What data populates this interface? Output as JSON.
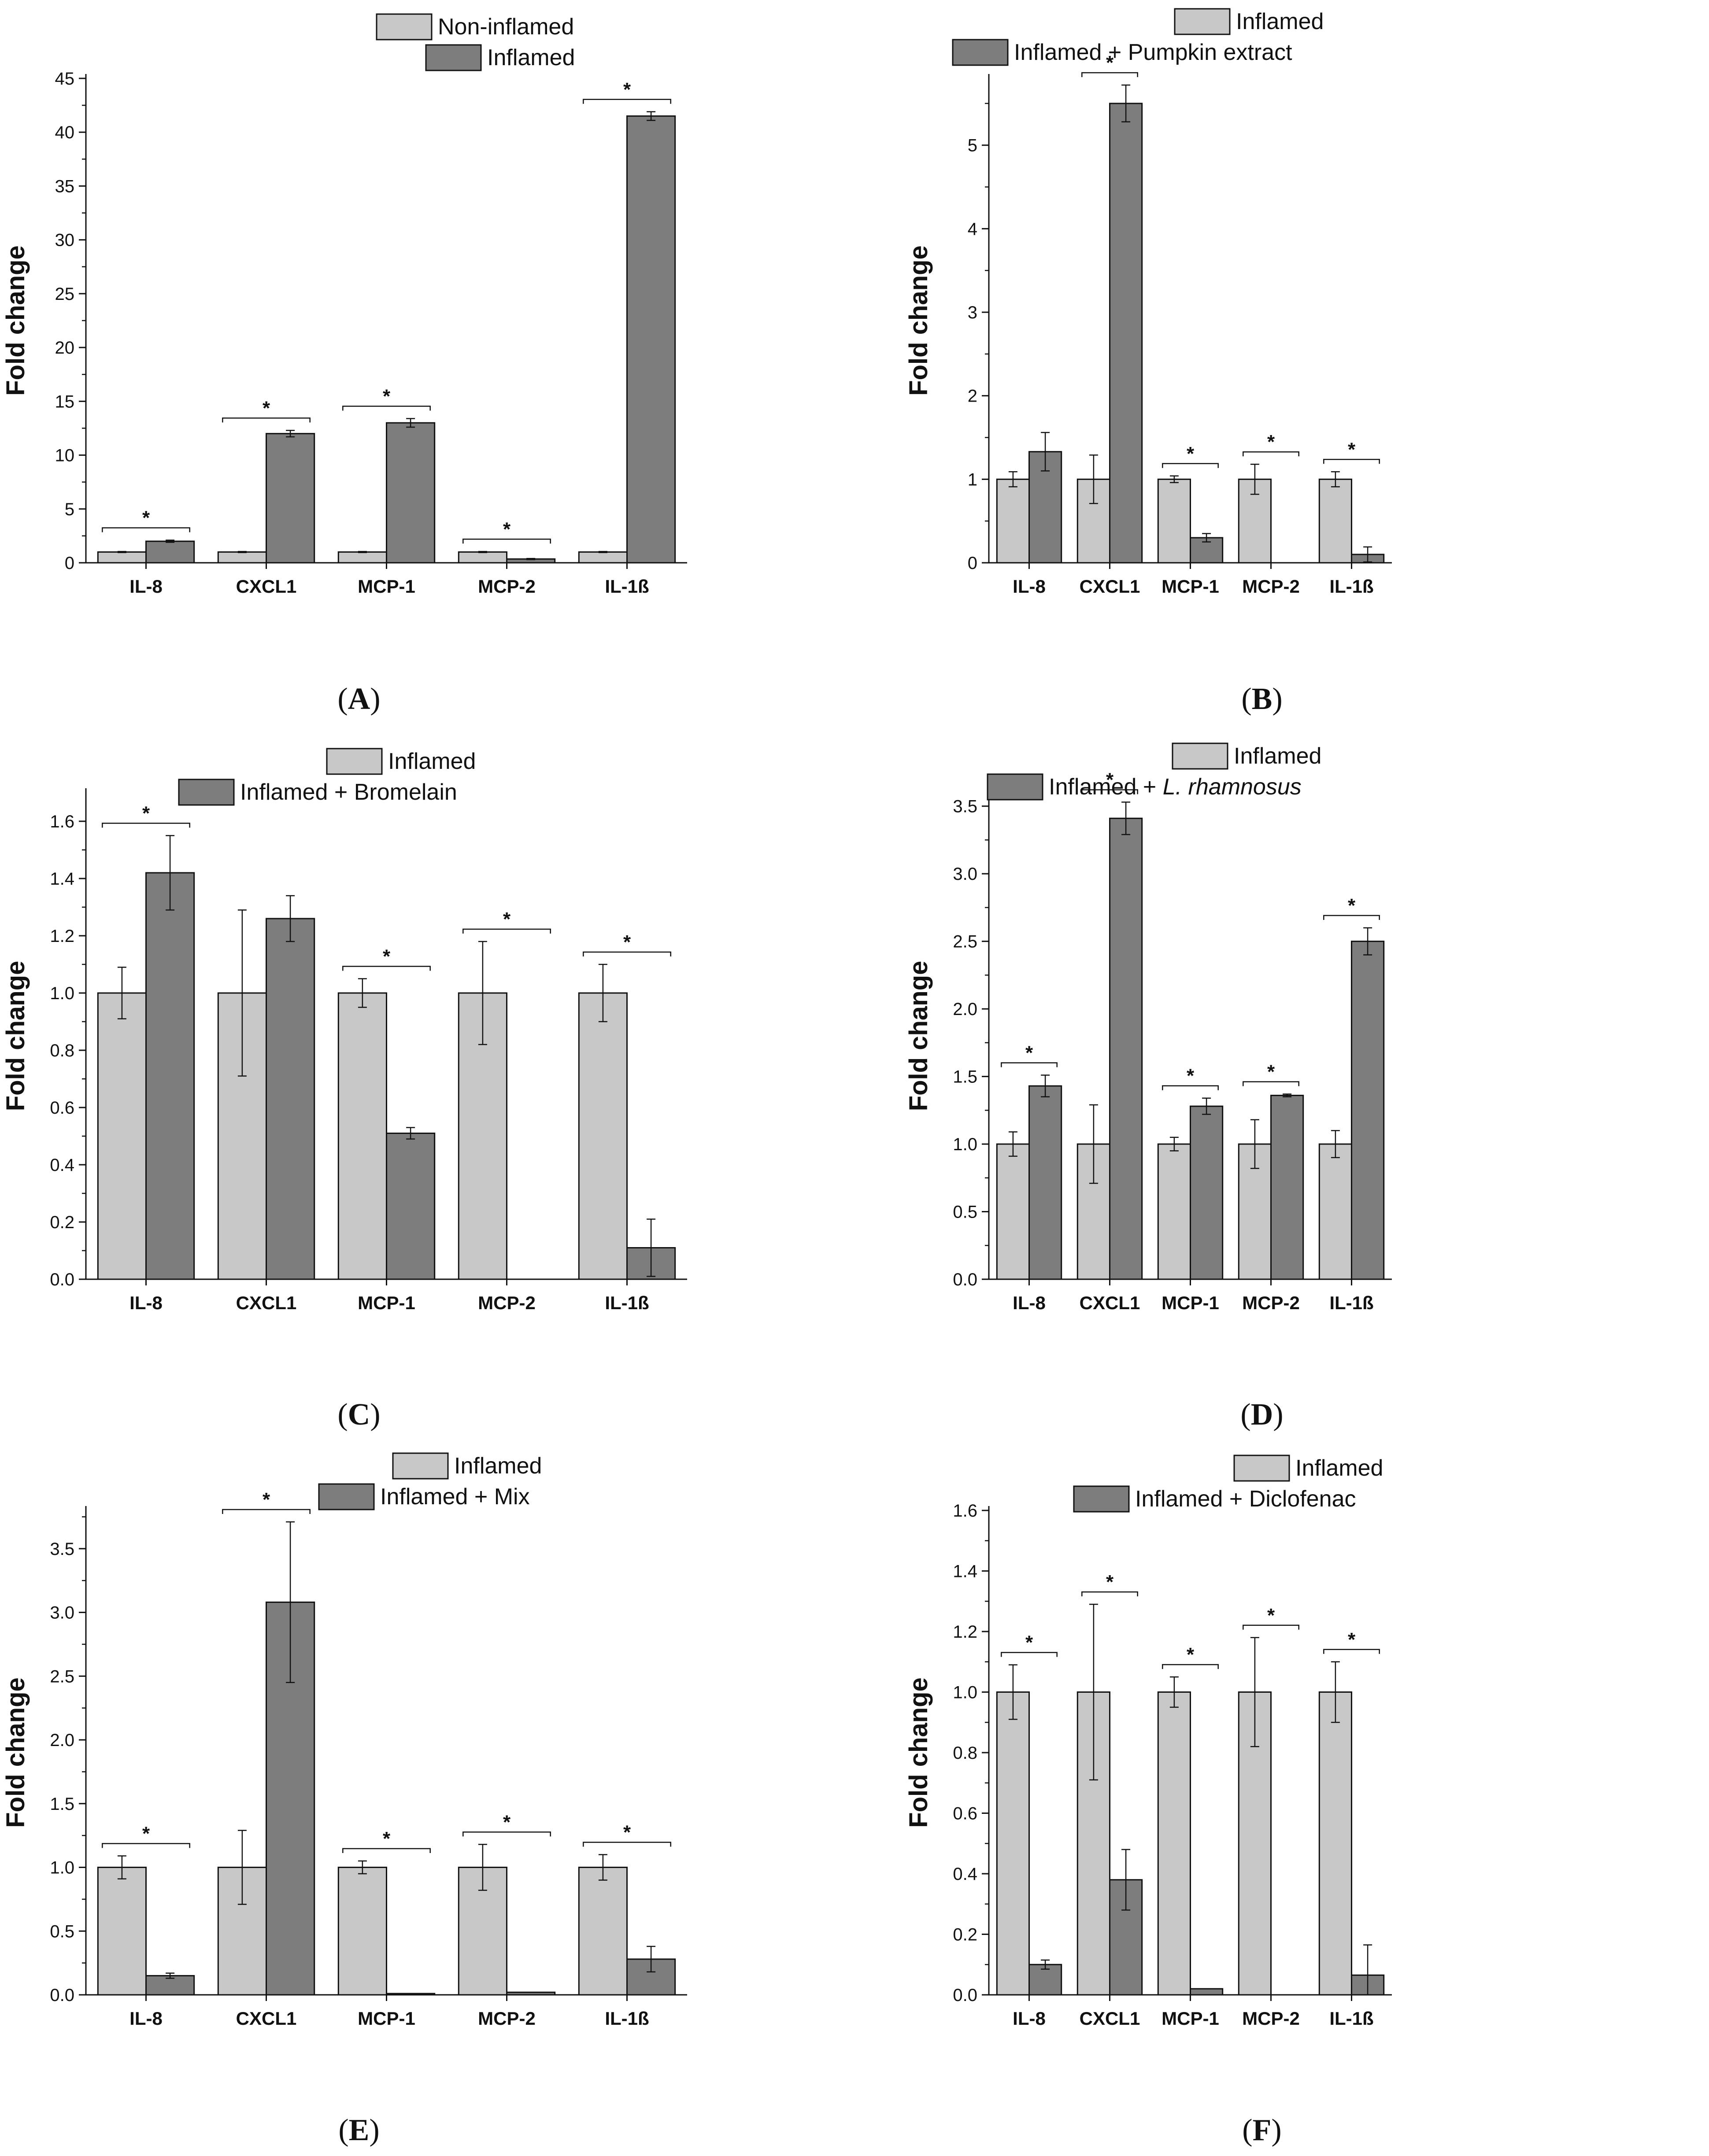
{
  "colors": {
    "light": "#c8c8c8",
    "dark": "#7d7d7d",
    "axis": "#111111"
  },
  "chart_data": [
    {
      "type": "bar",
      "panel": "A",
      "caption_letter": "A",
      "ylabel": "Fold change",
      "categories": [
        "IL-8",
        "CXCL1",
        "MCP-1",
        "MCP-2",
        "IL-1ß"
      ],
      "ylim": [
        0,
        45
      ],
      "yticks": [
        0,
        5,
        10,
        15,
        20,
        25,
        30,
        35,
        40,
        45
      ],
      "series": [
        {
          "name": "Non-inflamed",
          "values": [
            1,
            1,
            1,
            1,
            1
          ],
          "errors": [
            0.05,
            0.05,
            0.05,
            0.05,
            0.05
          ]
        },
        {
          "name": "Inflamed",
          "values": [
            2.0,
            12.0,
            13.0,
            0.35,
            41.5
          ],
          "errors": [
            0.1,
            0.3,
            0.4,
            0.05,
            0.4
          ]
        }
      ],
      "significance": [
        true,
        true,
        true,
        true,
        true
      ],
      "significance_mark": "*"
    },
    {
      "type": "bar",
      "panel": "B",
      "caption_letter": "B",
      "ylabel": "Fold change",
      "categories": [
        "IL-8",
        "CXCL1",
        "MCP-1",
        "MCP-2",
        "IL-1ß"
      ],
      "ylim": [
        0,
        5.8
      ],
      "yticks": [
        0,
        1,
        2,
        3,
        4,
        5
      ],
      "series": [
        {
          "name": "Inflamed",
          "values": [
            1,
            1,
            1,
            1,
            1
          ],
          "errors": [
            0.09,
            0.29,
            0.04,
            0.18,
            0.09
          ]
        },
        {
          "name": "Inflamed + Pumpkin extract",
          "values": [
            1.33,
            5.5,
            0.3,
            0.0,
            0.1
          ],
          "errors": [
            0.23,
            0.22,
            0.05,
            0.0,
            0.09
          ]
        }
      ],
      "significance": [
        false,
        true,
        true,
        true,
        true
      ],
      "significance_mark": "*"
    },
    {
      "type": "bar",
      "panel": "C",
      "caption_letter": "C",
      "ylabel": "Fold change",
      "categories": [
        "IL-8",
        "CXCL1",
        "MCP-1",
        "MCP-2",
        "IL-1ß"
      ],
      "ylim": [
        0,
        1.7
      ],
      "yticks": [
        0.0,
        0.2,
        0.4,
        0.6,
        0.8,
        1.0,
        1.2,
        1.4,
        1.6
      ],
      "series": [
        {
          "name": "Inflamed",
          "values": [
            1,
            1,
            1,
            1,
            1
          ],
          "errors": [
            0.09,
            0.29,
            0.05,
            0.18,
            0.1
          ]
        },
        {
          "name": "Inflamed + Bromelain",
          "values": [
            1.42,
            1.26,
            0.51,
            0.0,
            0.11
          ],
          "errors": [
            0.13,
            0.08,
            0.02,
            0.0,
            0.1
          ]
        }
      ],
      "significance": [
        true,
        false,
        true,
        true,
        true
      ],
      "significance_mark": "*"
    },
    {
      "type": "bar",
      "panel": "D",
      "caption_letter": "D",
      "ylabel": "Fold change",
      "categories": [
        "IL-8",
        "CXCL1",
        "MCP-1",
        "MCP-2",
        "IL-1ß"
      ],
      "ylim": [
        0,
        3.6
      ],
      "yticks": [
        0.0,
        0.5,
        1.0,
        1.5,
        2.0,
        2.5,
        3.0,
        3.5
      ],
      "series": [
        {
          "name": "Inflamed",
          "values": [
            1,
            1,
            1,
            1,
            1
          ],
          "errors": [
            0.09,
            0.29,
            0.05,
            0.18,
            0.1
          ]
        },
        {
          "name": "Inflamed + L. rhamnosus",
          "values": [
            1.43,
            3.41,
            1.28,
            1.36,
            2.5
          ],
          "errors": [
            0.08,
            0.12,
            0.06,
            0.01,
            0.1
          ]
        }
      ],
      "significance": [
        true,
        true,
        true,
        true,
        true
      ],
      "significance_mark": "*"
    },
    {
      "type": "bar",
      "panel": "E",
      "caption_letter": "E",
      "ylabel": "Fold change",
      "categories": [
        "IL-8",
        "CXCL1",
        "MCP-1",
        "MCP-2",
        "IL-1ß"
      ],
      "ylim": [
        0,
        3.8
      ],
      "yticks": [
        0.0,
        0.5,
        1.0,
        1.5,
        2.0,
        2.5,
        3.0,
        3.5
      ],
      "series": [
        {
          "name": "Inflamed",
          "values": [
            1,
            1,
            1,
            1,
            1
          ],
          "errors": [
            0.09,
            0.29,
            0.05,
            0.18,
            0.1
          ]
        },
        {
          "name": "Inflamed + Mix",
          "values": [
            0.15,
            3.08,
            0.01,
            0.02,
            0.28
          ],
          "errors": [
            0.02,
            0.63,
            0.0,
            0.0,
            0.1
          ]
        }
      ],
      "significance": [
        true,
        true,
        true,
        true,
        true
      ],
      "significance_mark": "*"
    },
    {
      "type": "bar",
      "panel": "F",
      "caption_letter": "F",
      "ylabel": "Fold change",
      "categories": [
        "IL-8",
        "CXCL1",
        "MCP-1",
        "MCP-2",
        "IL-1ß"
      ],
      "ylim": [
        0,
        1.6
      ],
      "yticks": [
        0.0,
        0.2,
        0.4,
        0.6,
        0.8,
        1.0,
        1.2,
        1.4,
        1.6
      ],
      "series": [
        {
          "name": "Inflamed",
          "values": [
            1,
            1,
            1,
            1,
            1
          ],
          "errors": [
            0.09,
            0.29,
            0.05,
            0.18,
            0.1
          ]
        },
        {
          "name": "Inflamed + Diclofenac",
          "values": [
            0.1,
            0.38,
            0.02,
            0.0,
            0.065
          ],
          "errors": [
            0.015,
            0.1,
            0.0,
            0.0,
            0.1
          ]
        }
      ],
      "significance": [
        true,
        true,
        true,
        true,
        true
      ],
      "significance_mark": "*"
    }
  ]
}
